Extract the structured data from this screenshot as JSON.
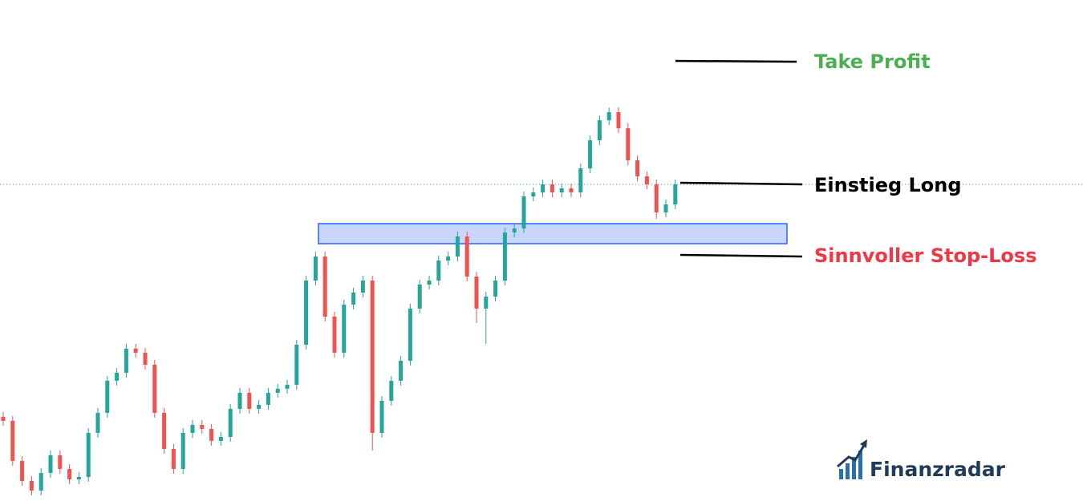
{
  "chart_data": {
    "type": "candlestick",
    "up_color": "#26a69a",
    "down_color": "#ef5350",
    "ylim": [
      0,
      625
    ],
    "open": [
      105,
      100,
      50,
      25,
      13,
      35,
      57,
      40,
      27,
      30,
      85,
      110,
      150,
      160,
      190,
      185,
      170,
      110,
      65,
      40,
      85,
      95,
      90,
      75,
      80,
      115,
      135,
      115,
      120,
      135,
      140,
      145,
      195,
      275,
      305,
      230,
      185,
      245,
      260,
      275,
      85,
      125,
      150,
      175,
      240,
      270,
      275,
      300,
      305,
      330,
      280,
      240,
      255,
      275,
      335,
      340,
      380,
      385,
      395,
      385,
      390,
      385,
      415,
      450,
      475,
      485,
      465,
      425,
      405,
      395,
      360,
      370
    ],
    "high": [
      111,
      106,
      56,
      31,
      41,
      63,
      63,
      46,
      36,
      91,
      116,
      156,
      166,
      196,
      196,
      191,
      176,
      116,
      71,
      91,
      101,
      101,
      96,
      86,
      121,
      141,
      141,
      126,
      141,
      146,
      151,
      201,
      281,
      311,
      311,
      236,
      251,
      266,
      281,
      281,
      131,
      156,
      181,
      246,
      276,
      281,
      306,
      311,
      336,
      336,
      286,
      261,
      281,
      341,
      346,
      386,
      391,
      401,
      401,
      396,
      396,
      421,
      456,
      481,
      491,
      491,
      471,
      431,
      411,
      401,
      376,
      401
    ],
    "low": [
      94,
      44,
      19,
      7,
      7,
      29,
      34,
      21,
      21,
      24,
      79,
      104,
      144,
      154,
      179,
      164,
      104,
      59,
      34,
      34,
      79,
      84,
      69,
      69,
      74,
      109,
      109,
      109,
      114,
      129,
      134,
      139,
      189,
      269,
      224,
      179,
      179,
      239,
      254,
      63,
      79,
      119,
      144,
      169,
      234,
      264,
      269,
      294,
      299,
      274,
      222,
      196,
      249,
      269,
      329,
      334,
      374,
      379,
      379,
      379,
      379,
      379,
      409,
      444,
      469,
      459,
      419,
      399,
      389,
      352,
      354,
      364
    ],
    "close": [
      100,
      50,
      25,
      13,
      35,
      57,
      40,
      27,
      30,
      85,
      110,
      150,
      160,
      190,
      185,
      170,
      110,
      65,
      40,
      85,
      95,
      90,
      75,
      80,
      115,
      135,
      115,
      120,
      135,
      140,
      145,
      195,
      275,
      305,
      230,
      185,
      245,
      260,
      275,
      85,
      125,
      150,
      175,
      240,
      270,
      275,
      300,
      305,
      330,
      280,
      240,
      255,
      275,
      335,
      340,
      380,
      385,
      395,
      385,
      390,
      385,
      415,
      450,
      475,
      485,
      465,
      425,
      405,
      395,
      360,
      370,
      395
    ],
    "annotations": [
      {
        "text": "Take Profit",
        "color": "#4caf50"
      },
      {
        "text": "Einstieg Long",
        "color": "#000000"
      },
      {
        "text": "Sinnvoller Stop-Loss",
        "color": "#f23645"
      }
    ]
  },
  "logo": {
    "text": "Finanzradar"
  }
}
